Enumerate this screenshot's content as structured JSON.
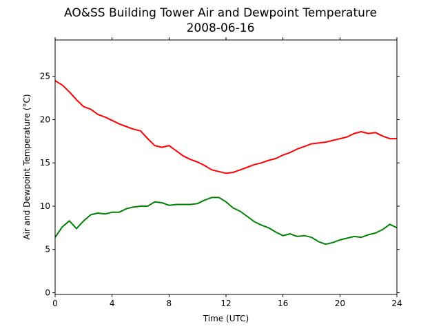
{
  "chart_data": {
    "type": "line",
    "title": "AO&SS Building Tower Air and Dewpoint Temperature",
    "subtitle": "2008-06-16",
    "xlabel": "Time (UTC)",
    "ylabel": "Air and Dewpoint Temperature (°C)",
    "xlim": [
      0,
      24
    ],
    "ylim": [
      -0.2,
      29.2
    ],
    "x_ticks": [
      0,
      4,
      8,
      12,
      16,
      20,
      24
    ],
    "y_ticks": [
      0,
      5,
      10,
      15,
      20,
      25
    ],
    "x_tick_labels": [
      "0",
      "4",
      "8",
      "12",
      "16",
      "20",
      "24"
    ],
    "y_tick_labels": [
      "0",
      "5",
      "10",
      "15",
      "20",
      "25"
    ],
    "grid": false,
    "series": [
      {
        "color": "#ff0000",
        "x": [
          0,
          0.5,
          1,
          1.5,
          2,
          2.5,
          3,
          3.5,
          4,
          4.5,
          5,
          5.5,
          6,
          6.5,
          7,
          7.5,
          8,
          8.5,
          9,
          9.5,
          10,
          10.5,
          11,
          11.5,
          12,
          12.5,
          13,
          13.5,
          14,
          14.5,
          15,
          15.5,
          16,
          16.5,
          17,
          17.5,
          18,
          18.5,
          19,
          19.5,
          20,
          20.5,
          21,
          21.5,
          22,
          22.5,
          23,
          23.5,
          24
        ],
        "values": [
          24.5,
          24.0,
          23.2,
          22.3,
          21.5,
          21.2,
          20.6,
          20.3,
          19.9,
          19.5,
          19.2,
          18.9,
          18.7,
          17.8,
          17.0,
          16.8,
          17.0,
          16.4,
          15.8,
          15.4,
          15.1,
          14.7,
          14.2,
          14.0,
          13.8,
          13.9,
          14.2,
          14.5,
          14.8,
          15.0,
          15.3,
          15.5,
          15.9,
          16.2,
          16.6,
          16.9,
          17.2,
          17.3,
          17.4,
          17.6,
          17.8,
          18.0,
          18.4,
          18.6,
          18.4,
          18.5,
          18.1,
          17.8,
          17.8
        ]
      },
      {
        "color": "#008000",
        "x": [
          0,
          0.5,
          1,
          1.5,
          2,
          2.5,
          3,
          3.5,
          4,
          4.5,
          5,
          5.5,
          6,
          6.5,
          7,
          7.5,
          8,
          8.5,
          9,
          9.5,
          10,
          10.5,
          11,
          11.5,
          12,
          12.5,
          13,
          13.5,
          14,
          14.5,
          15,
          15.5,
          16,
          16.5,
          17,
          17.5,
          18,
          18.5,
          19,
          19.5,
          20,
          20.5,
          21,
          21.5,
          22,
          22.5,
          23,
          23.5,
          24
        ],
        "values": [
          6.4,
          7.6,
          8.3,
          7.4,
          8.3,
          9.0,
          9.2,
          9.1,
          9.3,
          9.3,
          9.7,
          9.9,
          10.0,
          10.0,
          10.5,
          10.4,
          10.1,
          10.2,
          10.2,
          10.2,
          10.3,
          10.7,
          11.0,
          11.0,
          10.5,
          9.8,
          9.4,
          8.8,
          8.2,
          7.8,
          7.5,
          7.0,
          6.6,
          6.8,
          6.5,
          6.6,
          6.4,
          5.9,
          5.6,
          5.8,
          6.1,
          6.3,
          6.5,
          6.4,
          6.7,
          6.9,
          7.3,
          7.9,
          7.5
        ]
      }
    ]
  }
}
